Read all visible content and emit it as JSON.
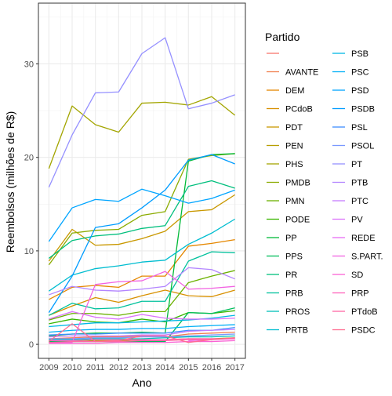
{
  "chart_data": {
    "type": "line",
    "xlabel": "Ano",
    "ylabel": "Reembolsos (milhões de R$)",
    "x": [
      2009,
      2010,
      2011,
      2012,
      2013,
      2014,
      2015,
      2016,
      2017
    ],
    "ylim": [
      -1.5,
      36.5
    ],
    "yticks": [
      0,
      10,
      20,
      30
    ],
    "grid": true,
    "legend": {
      "title": "Partido",
      "placement": "right"
    },
    "series": [
      {
        "name": "",
        "color": "#F8766D",
        "values": [
          null,
          null,
          null,
          null,
          null,
          null,
          null,
          null,
          null
        ]
      },
      {
        "name": "AVANTE",
        "color": "#F07F4E",
        "values": [
          0.6,
          0.7,
          0.8,
          0.8,
          0.9,
          0.8,
          1.1,
          1.2,
          1.3
        ]
      },
      {
        "name": "DEM",
        "color": "#E58700",
        "values": [
          4.8,
          6.1,
          6.3,
          6.1,
          7.3,
          7.3,
          10.5,
          10.8,
          11.2
        ]
      },
      {
        "name": "PCdoB",
        "color": "#D89000",
        "values": [
          3.1,
          4.1,
          5.0,
          4.5,
          5.2,
          5.8,
          5.2,
          5.1,
          5.8
        ]
      },
      {
        "name": "PDT",
        "color": "#C99800",
        "values": [
          8.9,
          12.3,
          10.6,
          10.7,
          11.3,
          12.1,
          14.2,
          14.4,
          16.0
        ]
      },
      {
        "name": "PEN",
        "color": "#B79F00",
        "values": [
          0.3,
          0.3,
          0.4,
          0.4,
          0.5,
          0.5,
          0.6,
          0.6,
          0.7
        ]
      },
      {
        "name": "PHS",
        "color": "#A3A500",
        "values": [
          18.8,
          25.5,
          23.5,
          22.7,
          25.8,
          25.9,
          25.6,
          26.5,
          24.5
        ]
      },
      {
        "name": "PMDB",
        "color": "#8BAB00",
        "values": [
          8.5,
          11.9,
          12.2,
          12.3,
          13.8,
          14.2,
          19.8,
          20.2,
          20.4
        ]
      },
      {
        "name": "PMN",
        "color": "#6BB100",
        "values": [
          2.6,
          3.3,
          3.3,
          3.1,
          3.5,
          3.5,
          6.6,
          7.3,
          7.9
        ]
      },
      {
        "name": "PODE",
        "color": "#39B600",
        "values": [
          2.2,
          2.7,
          2.4,
          2.3,
          2.7,
          2.4,
          3.4,
          3.3,
          3.6
        ]
      },
      {
        "name": "PP",
        "color": "#00BA38",
        "values": [
          0.9,
          1.1,
          1.2,
          1.2,
          1.3,
          1.2,
          19.6,
          20.3,
          20.4
        ]
      },
      {
        "name": "PPS",
        "color": "#00BD5C",
        "values": [
          0.3,
          0.3,
          0.3,
          0.3,
          0.3,
          0.3,
          3.4,
          3.3,
          3.9
        ]
      },
      {
        "name": "PR",
        "color": "#00BF7D",
        "values": [
          9.2,
          11.1,
          11.6,
          11.8,
          12.4,
          12.7,
          16.9,
          17.5,
          16.7
        ]
      },
      {
        "name": "PRB",
        "color": "#00C19C",
        "values": [
          3.1,
          4.4,
          3.8,
          3.9,
          4.6,
          4.6,
          8.9,
          9.9,
          9.8
        ]
      },
      {
        "name": "PROS",
        "color": "#00C0B8",
        "values": [
          0.5,
          0.5,
          0.6,
          0.6,
          0.6,
          0.7,
          0.8,
          0.8,
          0.9
        ]
      },
      {
        "name": "PRTB",
        "color": "#00BDD0",
        "values": [
          5.7,
          7.4,
          8.1,
          8.4,
          8.8,
          9.0,
          10.7,
          11.9,
          13.4
        ]
      },
      {
        "name": "PSB",
        "color": "#00B8E5",
        "values": [
          1.9,
          2.1,
          2.3,
          2.3,
          2.4,
          2.5,
          2.6,
          2.8,
          3.1
        ]
      },
      {
        "name": "PSC",
        "color": "#00B0F6",
        "values": [
          1.3,
          1.5,
          1.6,
          1.6,
          1.7,
          1.7,
          1.9,
          2.0,
          2.1
        ]
      },
      {
        "name": "PSD",
        "color": "#00A5FF",
        "values": [
          11.0,
          14.6,
          15.5,
          15.3,
          16.6,
          15.9,
          15.1,
          15.6,
          16.5
        ]
      },
      {
        "name": "PSDB",
        "color": "#009CFF",
        "values": [
          3.4,
          7.3,
          12.5,
          12.9,
          14.6,
          16.5,
          19.7,
          20.3,
          19.3
        ]
      },
      {
        "name": "PSL",
        "color": "#3D8DFF",
        "values": [
          1.0,
          1.1,
          1.1,
          1.2,
          1.2,
          1.2,
          1.5,
          1.5,
          1.8
        ]
      },
      {
        "name": "PSOL",
        "color": "#7997FF",
        "values": [
          0.6,
          0.6,
          0.7,
          0.7,
          0.8,
          0.8,
          0.9,
          1.0,
          1.1
        ]
      },
      {
        "name": "PT",
        "color": "#9590FF",
        "values": [
          16.8,
          22.4,
          26.9,
          27.0,
          31.1,
          32.8,
          25.2,
          25.8,
          26.7
        ]
      },
      {
        "name": "PTB",
        "color": "#B385FF",
        "values": [
          5.3,
          6.2,
          5.8,
          5.7,
          5.9,
          6.2,
          8.2,
          8.0,
          7.0
        ]
      },
      {
        "name": "PTC",
        "color": "#C77CFF",
        "values": [
          0.8,
          0.9,
          0.9,
          0.9,
          1.0,
          1.0,
          1.4,
          1.5,
          1.6
        ]
      },
      {
        "name": "PV",
        "color": "#DB72FB",
        "values": [
          2.7,
          3.5,
          2.9,
          2.7,
          3.2,
          2.8,
          2.7,
          2.7,
          2.8
        ]
      },
      {
        "name": "REDE",
        "color": "#E76BF3",
        "values": [
          null,
          null,
          null,
          null,
          null,
          null,
          0.4,
          0.5,
          0.6
        ]
      },
      {
        "name": "S.PART.",
        "color": "#F263E2",
        "values": [
          0.2,
          0.2,
          6.4,
          6.7,
          6.8,
          7.8,
          5.9,
          6.0,
          6.2
        ]
      },
      {
        "name": "SD",
        "color": "#FA62D4",
        "values": [
          0.1,
          0.1,
          0.1,
          0.2,
          0.2,
          0.2,
          0.3,
          0.3,
          0.4
        ]
      },
      {
        "name": "PRP",
        "color": "#FF62BC",
        "values": [
          0.4,
          0.4,
          0.5,
          0.5,
          0.5,
          0.5,
          0.6,
          0.6,
          0.6
        ]
      },
      {
        "name": "PTdoB",
        "color": "#FF67A4",
        "values": [
          0.2,
          0.3,
          0.3,
          0.3,
          0.4,
          0.4,
          0.5,
          0.5,
          null
        ]
      },
      {
        "name": "PSDC",
        "color": "#FF6C91",
        "values": [
          0.3,
          2.2,
          0.3,
          0.4,
          0.9,
          0.9,
          0.2,
          0.5,
          0.7
        ]
      }
    ]
  }
}
